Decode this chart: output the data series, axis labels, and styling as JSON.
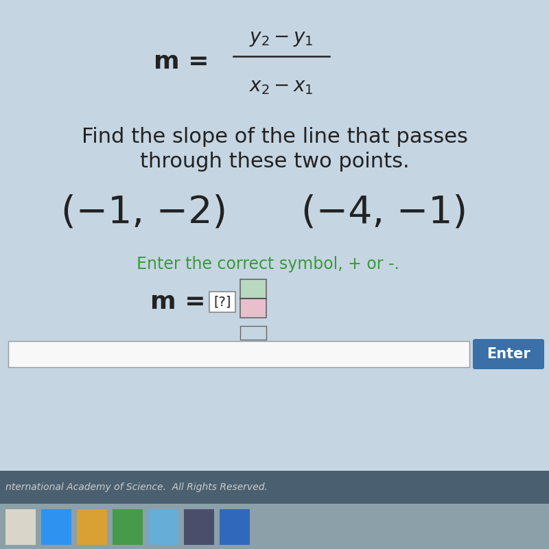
{
  "bg_color": "#c5d5e2",
  "formula_m": "m = ",
  "formula_numerator": "$y_2-y_1$",
  "formula_denominator": "$x_2-x_1$",
  "instruction_line1": "Find the slope of the line that passes",
  "instruction_line2": "through these two points.",
  "point1": "(−1, −2)",
  "point2": "(−4, −1)",
  "prompt_text": "Enter the correct symbol, + or -.",
  "prompt_color": "#3a9a3a",
  "taskbar_color": "#4a6070",
  "footer_text": "nternational Academy of Science.  All Rights Reserved.",
  "footer_color": "#cccccc",
  "enter_btn_color": "#3a6fa8",
  "enter_btn_text": "Enter",
  "input_bg": "#f8f8f8",
  "fraction_box_color_top": "#b8d8c0",
  "fraction_box_color_bot": "#e8c0cc",
  "text_color": "#222222"
}
